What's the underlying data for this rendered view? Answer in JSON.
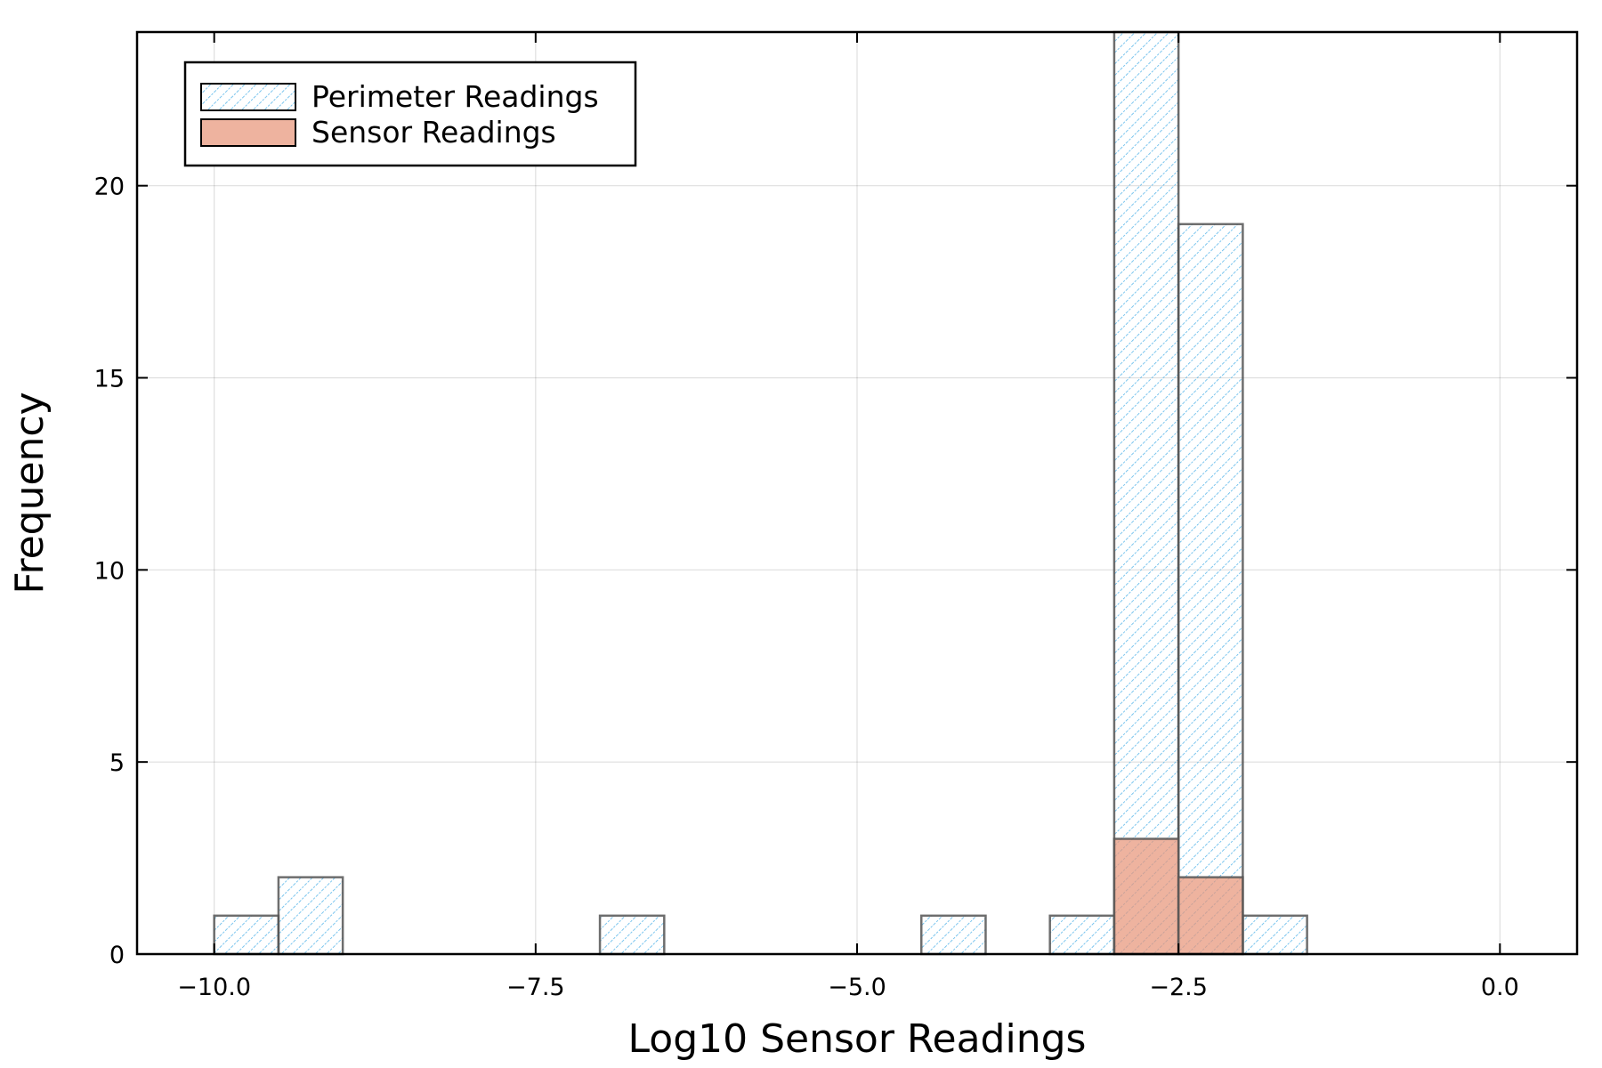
{
  "chart_data": {
    "type": "bar",
    "subtype": "histogram",
    "xlabel": "Log10 Sensor Readings",
    "ylabel": "Frequency",
    "xlim": [
      -10.6,
      0.6
    ],
    "ylim": [
      0,
      24
    ],
    "xticks": [
      -10.0,
      -7.5,
      -5.0,
      -2.5,
      0.0
    ],
    "xtick_labels": [
      "−10.0",
      "−7.5",
      "−5.0",
      "−2.5",
      "0.0"
    ],
    "yticks": [
      0,
      5,
      10,
      15,
      20
    ],
    "ytick_labels": [
      "0",
      "5",
      "10",
      "15",
      "20"
    ],
    "grid": true,
    "legend_position": "top-left",
    "bin_width": 0.5,
    "series": [
      {
        "name": "Perimeter Readings",
        "color": "#5bb7ea",
        "fill": "hatched",
        "bins": [
          {
            "x0": -10.0,
            "x1": -9.5,
            "count": 1
          },
          {
            "x0": -9.5,
            "x1": -9.0,
            "count": 2
          },
          {
            "x0": -7.0,
            "x1": -6.5,
            "count": 1
          },
          {
            "x0": -4.5,
            "x1": -4.0,
            "count": 1
          },
          {
            "x0": -3.5,
            "x1": -3.0,
            "count": 1
          },
          {
            "x0": -3.0,
            "x1": -2.5,
            "count": 24
          },
          {
            "x0": -2.5,
            "x1": -2.0,
            "count": 19
          },
          {
            "x0": -2.0,
            "x1": -1.5,
            "count": 1
          }
        ]
      },
      {
        "name": "Sensor Readings",
        "color": "#e8967a",
        "fill": "solid",
        "bins": [
          {
            "x0": -3.0,
            "x1": -2.5,
            "count": 3
          },
          {
            "x0": -2.5,
            "x1": -2.0,
            "count": 2
          }
        ]
      }
    ]
  }
}
